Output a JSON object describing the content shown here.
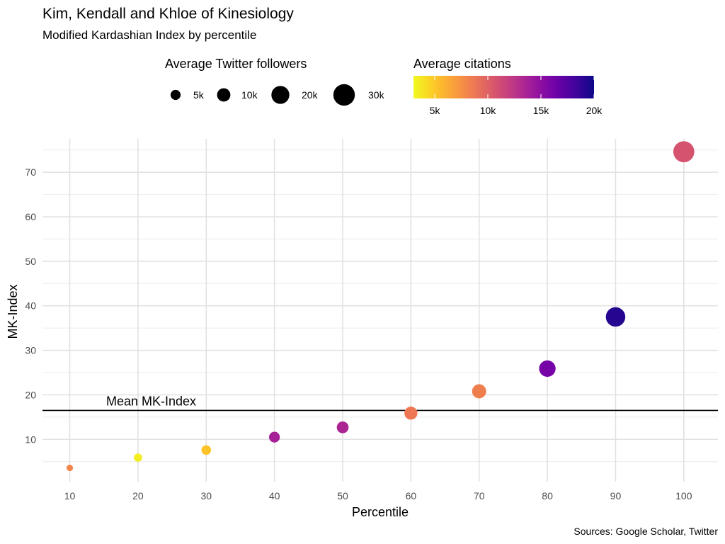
{
  "chart_data": {
    "type": "scatter",
    "title": "Kim, Kendall and Khloe of Kinesiology",
    "subtitle": "Modified Kardashian Index by percentile",
    "caption": "Sources: Google Scholar, Twitter",
    "xlabel": "Percentile",
    "ylabel": "MK-Index",
    "xlim": [
      6,
      105
    ],
    "ylim": [
      0.5,
      77.5
    ],
    "x_ticks": [
      10,
      20,
      30,
      40,
      50,
      60,
      70,
      80,
      90,
      100
    ],
    "y_ticks": [
      10,
      20,
      30,
      40,
      50,
      60,
      70
    ],
    "grid": true,
    "reference_line": {
      "y": 16.5,
      "label": "Mean MK-Index"
    },
    "size_legend": {
      "title": "Average Twitter followers",
      "labels": [
        "5k",
        "10k",
        "20k",
        "30k"
      ],
      "values": [
        5000,
        10000,
        20000,
        30000
      ]
    },
    "color_legend": {
      "title": "Average citations",
      "labels": [
        "5k",
        "10k",
        "15k",
        "20k"
      ],
      "values": [
        5000,
        10000,
        15000,
        20000
      ],
      "range": [
        3000,
        20000
      ]
    },
    "points": [
      {
        "x": 10,
        "y": 3.6,
        "followers": 1500,
        "citations": 8000
      },
      {
        "x": 20,
        "y": 5.9,
        "followers": 3000,
        "citations": 3500
      },
      {
        "x": 30,
        "y": 7.6,
        "followers": 4500,
        "citations": 5200
      },
      {
        "x": 40,
        "y": 10.5,
        "followers": 6000,
        "citations": 13800
      },
      {
        "x": 50,
        "y": 12.7,
        "followers": 7500,
        "citations": 13500
      },
      {
        "x": 60,
        "y": 15.9,
        "followers": 9500,
        "citations": 8700
      },
      {
        "x": 70,
        "y": 20.8,
        "followers": 11500,
        "citations": 8400
      },
      {
        "x": 80,
        "y": 25.9,
        "followers": 16500,
        "citations": 16000
      },
      {
        "x": 90,
        "y": 37.5,
        "followers": 24000,
        "citations": 19200
      },
      {
        "x": 100,
        "y": 74.6,
        "followers": 28500,
        "citations": 10800
      }
    ]
  }
}
